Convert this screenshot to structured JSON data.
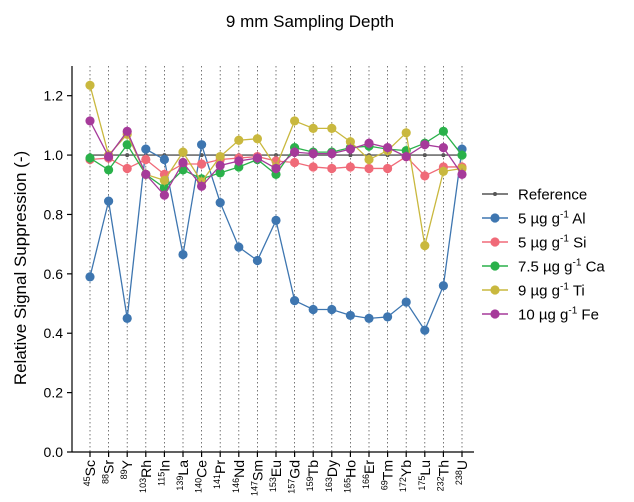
{
  "chart_data": {
    "type": "line",
    "title": "9 mm Sampling Depth",
    "xlabel": "",
    "ylabel": "Relative Signal Suppression (-)",
    "ylim": [
      0.0,
      1.3
    ],
    "yticks": [
      0.0,
      0.2,
      0.4,
      0.6,
      0.8,
      1.0,
      1.2
    ],
    "grid": "vertical dotted",
    "legend_position": "right",
    "categories": [
      {
        "mass": "45",
        "el": "Sc"
      },
      {
        "mass": "88",
        "el": "Sr"
      },
      {
        "mass": "89",
        "el": "Y"
      },
      {
        "mass": "103",
        "el": "Rh"
      },
      {
        "mass": "115",
        "el": "In"
      },
      {
        "mass": "139",
        "el": "La"
      },
      {
        "mass": "140",
        "el": "Ce"
      },
      {
        "mass": "141",
        "el": "Pr"
      },
      {
        "mass": "146",
        "el": "Nd"
      },
      {
        "mass": "147",
        "el": "Sm"
      },
      {
        "mass": "153",
        "el": "Eu"
      },
      {
        "mass": "157",
        "el": "Gd"
      },
      {
        "mass": "159",
        "el": "Tb"
      },
      {
        "mass": "163",
        "el": "Dy"
      },
      {
        "mass": "165",
        "el": "Ho"
      },
      {
        "mass": "166",
        "el": "Er"
      },
      {
        "mass": "69",
        "el": "Tm"
      },
      {
        "mass": "172",
        "el": "Yb"
      },
      {
        "mass": "175",
        "el": "Lu"
      },
      {
        "mass": "232",
        "el": "Th"
      },
      {
        "mass": "238",
        "el": "U"
      }
    ],
    "series": [
      {
        "name": "Reference",
        "legend": {
          "pre": "Reference"
        },
        "color": "#555555",
        "values": [
          1.0,
          1.0,
          1.0,
          1.0,
          1.0,
          1.0,
          1.0,
          1.0,
          1.0,
          1.0,
          1.0,
          1.0,
          1.0,
          1.0,
          1.0,
          1.0,
          1.0,
          1.0,
          1.0,
          1.0,
          1.0
        ]
      },
      {
        "name": "5 µg g-1 Al",
        "legend": {
          "pre": "5 µg g",
          "sup": "-1",
          "post": " Al"
        },
        "color": "#3e76b0",
        "values": [
          0.59,
          0.845,
          0.45,
          1.02,
          0.985,
          0.665,
          1.035,
          0.84,
          0.69,
          0.645,
          0.78,
          0.51,
          0.48,
          0.48,
          0.46,
          0.45,
          0.455,
          0.505,
          0.41,
          0.56,
          1.02
        ]
      },
      {
        "name": "5 µg g-1 Si",
        "legend": {
          "pre": "5 µg g",
          "sup": "-1",
          "post": " Si"
        },
        "color": "#f06a78",
        "values": [
          0.985,
          0.99,
          0.955,
          0.985,
          0.935,
          0.97,
          0.97,
          0.985,
          0.99,
          0.995,
          0.98,
          0.975,
          0.96,
          0.955,
          0.96,
          0.955,
          0.955,
          0.995,
          0.93,
          0.96,
          0.96
        ]
      },
      {
        "name": "7.5 µg g-1 Ca",
        "legend": {
          "pre": "7.5 µg g",
          "sup": "-1",
          "post": " Ca"
        },
        "color": "#2ab14a",
        "values": [
          0.99,
          0.95,
          1.035,
          0.935,
          0.89,
          0.95,
          0.92,
          0.94,
          0.96,
          0.985,
          0.935,
          1.025,
          1.01,
          1.01,
          1.025,
          1.03,
          1.02,
          1.015,
          1.04,
          1.08,
          1.0
        ]
      },
      {
        "name": "9 µg g-1 Ti",
        "legend": {
          "pre": "9 µg g",
          "sup": "-1",
          "post": " Ti"
        },
        "color": "#c9b83e",
        "values": [
          1.235,
          1.0,
          1.07,
          0.935,
          0.915,
          1.01,
          0.91,
          0.995,
          1.05,
          1.055,
          0.96,
          1.115,
          1.09,
          1.09,
          1.045,
          0.985,
          1.015,
          1.075,
          0.695,
          0.945,
          0.955
        ]
      },
      {
        "name": "10 µg g-1 Fe",
        "legend": {
          "pre": "10 µg g",
          "sup": "-1",
          "post": " Fe"
        },
        "color": "#a63a9a",
        "values": [
          1.115,
          0.995,
          1.08,
          0.935,
          0.865,
          0.975,
          0.895,
          0.965,
          0.98,
          0.99,
          0.955,
          1.01,
          1.005,
          1.005,
          1.02,
          1.04,
          1.025,
          0.995,
          1.035,
          1.025,
          0.935
        ]
      }
    ]
  }
}
